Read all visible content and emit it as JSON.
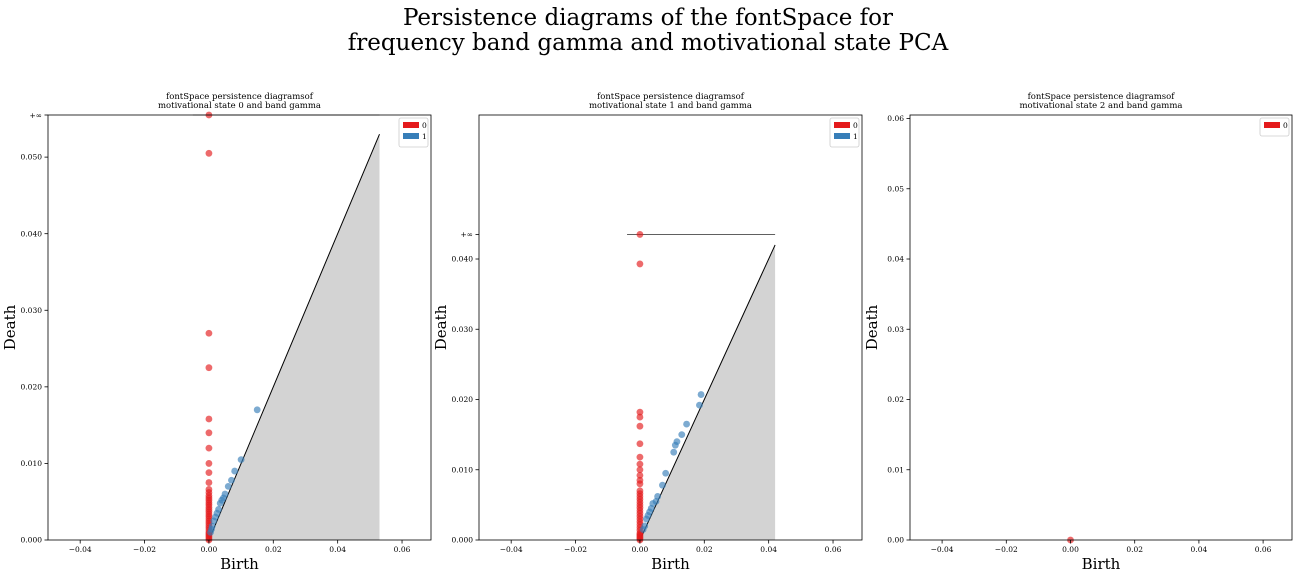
{
  "figure": {
    "title_line1": "Persistence diagrams of the fontSpace for",
    "title_line2": "frequency band gamma and motivational state PCA"
  },
  "colors": {
    "dim0": "#e41a1c",
    "dim1": "#377eb8",
    "diagonal_fill": "#d3d3d3"
  },
  "chart_data": [
    {
      "type": "scatter",
      "title_line1": "fontSpace persistence diagramsof",
      "title_line2": "motivational state 0 and band gamma",
      "xlabel": "Birth",
      "ylabel": "Death",
      "xlim": [
        -0.05,
        0.069
      ],
      "ylim": [
        0.0,
        0.0555
      ],
      "xticks": [
        "−0.04",
        "−0.02",
        "0.00",
        "0.02",
        "0.04",
        "0.06"
      ],
      "xtick_values": [
        -0.04,
        -0.02,
        0.0,
        0.02,
        0.04,
        0.06
      ],
      "yticks": [
        "0.000",
        "0.010",
        "0.020",
        "0.030",
        "0.040",
        "0.050"
      ],
      "ytick_values": [
        0.0,
        0.01,
        0.02,
        0.03,
        0.04,
        0.05
      ],
      "infinity_label": "+∞",
      "infinity_value": 0.0555,
      "infinity_line_x": [
        -0.005,
        0.053
      ],
      "diagonal_max": 0.053,
      "legend": [
        "0",
        "1"
      ],
      "legend_position": "top-right",
      "series": [
        {
          "name": "0",
          "x": [
            0,
            0,
            0,
            0,
            0,
            0,
            0,
            0,
            0,
            0,
            0,
            0,
            0,
            0,
            0,
            0,
            0,
            0,
            0,
            0,
            0,
            0,
            0,
            0,
            0,
            0,
            0,
            0,
            0,
            0,
            0,
            0,
            0,
            0
          ],
          "y": [
            0.0555,
            0.0505,
            0.027,
            0.0225,
            0.0158,
            0.014,
            0.012,
            0.01,
            0.0088,
            0.0075,
            0.0066,
            0.0062,
            0.0058,
            0.0055,
            0.0052,
            0.0049,
            0.0046,
            0.0043,
            0.004,
            0.0037,
            0.0034,
            0.0031,
            0.0028,
            0.0025,
            0.0022,
            0.0019,
            0.0016,
            0.0013,
            0.001,
            0.0008,
            0.0006,
            0.0004,
            0.0002,
            0.0
          ]
        },
        {
          "name": "1",
          "x": [
            0.015,
            0.01,
            0.008,
            0.007,
            0.006,
            0.005,
            0.0045,
            0.004,
            0.0035,
            0.003,
            0.0025,
            0.002,
            0.0015,
            0.001,
            0.0008,
            0.0005
          ],
          "y": [
            0.017,
            0.0105,
            0.009,
            0.0078,
            0.007,
            0.006,
            0.0055,
            0.0052,
            0.0048,
            0.004,
            0.0035,
            0.003,
            0.0025,
            0.0018,
            0.0014,
            0.001
          ]
        }
      ]
    },
    {
      "type": "scatter",
      "title_line1": "fontSpace persistence diagramsof",
      "title_line2": "motivational state 1 and band gamma",
      "xlabel": "Birth",
      "ylabel": "Death",
      "xlim": [
        -0.05,
        0.069
      ],
      "ylim": [
        0.0,
        0.0605
      ],
      "xticks": [
        "−0.04",
        "−0.02",
        "0.00",
        "0.02",
        "0.04",
        "0.06"
      ],
      "xtick_values": [
        -0.04,
        -0.02,
        0.0,
        0.02,
        0.04,
        0.06
      ],
      "yticks": [
        "0.000",
        "0.010",
        "0.020",
        "0.030",
        "0.040"
      ],
      "ytick_values": [
        0.0,
        0.01,
        0.02,
        0.03,
        0.04
      ],
      "infinity_label": "+∞",
      "infinity_value": 0.0435,
      "infinity_line_x": [
        -0.004,
        0.042
      ],
      "diagonal_max": 0.042,
      "legend": [
        "0",
        "1"
      ],
      "legend_position": "top-right",
      "series": [
        {
          "name": "0",
          "x": [
            0,
            0,
            0,
            0,
            0,
            0,
            0,
            0,
            0,
            0,
            0,
            0,
            0,
            0,
            0,
            0,
            0,
            0,
            0,
            0,
            0,
            0,
            0,
            0,
            0,
            0,
            0,
            0,
            0,
            0,
            0,
            0,
            0
          ],
          "y": [
            0.0435,
            0.0393,
            0.0182,
            0.0175,
            0.0162,
            0.0137,
            0.0118,
            0.0108,
            0.01,
            0.0092,
            0.0085,
            0.008,
            0.007,
            0.0066,
            0.0062,
            0.0058,
            0.0054,
            0.005,
            0.0046,
            0.0042,
            0.0038,
            0.0034,
            0.003,
            0.0026,
            0.0022,
            0.0018,
            0.0014,
            0.001,
            0.0008,
            0.0006,
            0.0004,
            0.0002,
            0.0
          ]
        },
        {
          "name": "1",
          "x": [
            0.019,
            0.0185,
            0.0145,
            0.013,
            0.0115,
            0.011,
            0.0105,
            0.008,
            0.007,
            0.0055,
            0.005,
            0.004,
            0.0035,
            0.003,
            0.0025,
            0.002,
            0.0015,
            0.001
          ],
          "y": [
            0.0207,
            0.0192,
            0.0165,
            0.015,
            0.014,
            0.0135,
            0.0125,
            0.0095,
            0.0078,
            0.0062,
            0.0055,
            0.0052,
            0.0045,
            0.004,
            0.0035,
            0.003,
            0.002,
            0.0015
          ]
        }
      ]
    },
    {
      "type": "scatter",
      "title_line1": "fontSpace persistence diagramsof",
      "title_line2": "motivational state 2 and band gamma",
      "xlabel": "Birth",
      "ylabel": "Death",
      "xlim": [
        -0.05,
        0.069
      ],
      "ylim": [
        0.0,
        0.0605
      ],
      "xticks": [
        "−0.04",
        "−0.02",
        "0.00",
        "0.02",
        "0.04",
        "0.06"
      ],
      "xtick_values": [
        -0.04,
        -0.02,
        0.0,
        0.02,
        0.04,
        0.06
      ],
      "yticks": [
        "0.00",
        "0.01",
        "0.02",
        "0.03",
        "0.04",
        "0.05",
        "0.06"
      ],
      "ytick_values": [
        0.0,
        0.01,
        0.02,
        0.03,
        0.04,
        0.05,
        0.06
      ],
      "infinity_label": "",
      "infinity_value": null,
      "infinity_line_x": null,
      "diagonal_max": null,
      "legend": [
        "0"
      ],
      "legend_position": "top-right",
      "series": [
        {
          "name": "0",
          "x": [
            0.0
          ],
          "y": [
            0.0
          ]
        }
      ]
    }
  ]
}
